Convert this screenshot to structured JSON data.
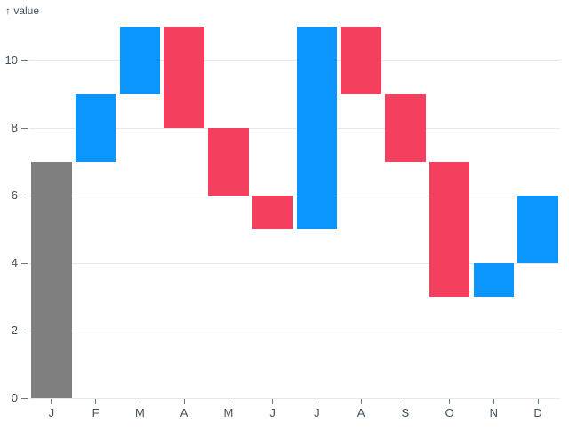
{
  "chart_data": {
    "type": "bar",
    "subtype": "waterfall",
    "ylabel": "value",
    "ylabel_display": "↑ value",
    "categories": [
      "J",
      "F",
      "M",
      "A",
      "M",
      "J",
      "J",
      "A",
      "S",
      "O",
      "N",
      "D"
    ],
    "bars": [
      {
        "label": "J",
        "from": 0,
        "to": 7,
        "kind": "base"
      },
      {
        "label": "F",
        "from": 7,
        "to": 9,
        "kind": "increase"
      },
      {
        "label": "M",
        "from": 9,
        "to": 11,
        "kind": "increase"
      },
      {
        "label": "A",
        "from": 11,
        "to": 8,
        "kind": "decrease"
      },
      {
        "label": "M",
        "from": 8,
        "to": 6,
        "kind": "decrease"
      },
      {
        "label": "J",
        "from": 6,
        "to": 5,
        "kind": "decrease"
      },
      {
        "label": "J",
        "from": 5,
        "to": 11,
        "kind": "increase"
      },
      {
        "label": "A",
        "from": 11,
        "to": 9,
        "kind": "decrease"
      },
      {
        "label": "S",
        "from": 9,
        "to": 7,
        "kind": "decrease"
      },
      {
        "label": "O",
        "from": 7,
        "to": 3,
        "kind": "decrease"
      },
      {
        "label": "N",
        "from": 3,
        "to": 4,
        "kind": "increase"
      },
      {
        "label": "D",
        "from": 4,
        "to": 6,
        "kind": "increase"
      }
    ],
    "yticks": [
      0,
      2,
      4,
      6,
      8,
      10
    ],
    "ylim": [
      0,
      11
    ],
    "grid": true,
    "legend": "none",
    "colors": {
      "increase": "#0a96fc",
      "decrease": "#f43f5e",
      "base": "#7f7f7f"
    },
    "axis_text_color": "#3f5060",
    "tick_mark_color": "#6b7683",
    "grid_color": "#e6e8ea",
    "background": "#ffffff"
  }
}
